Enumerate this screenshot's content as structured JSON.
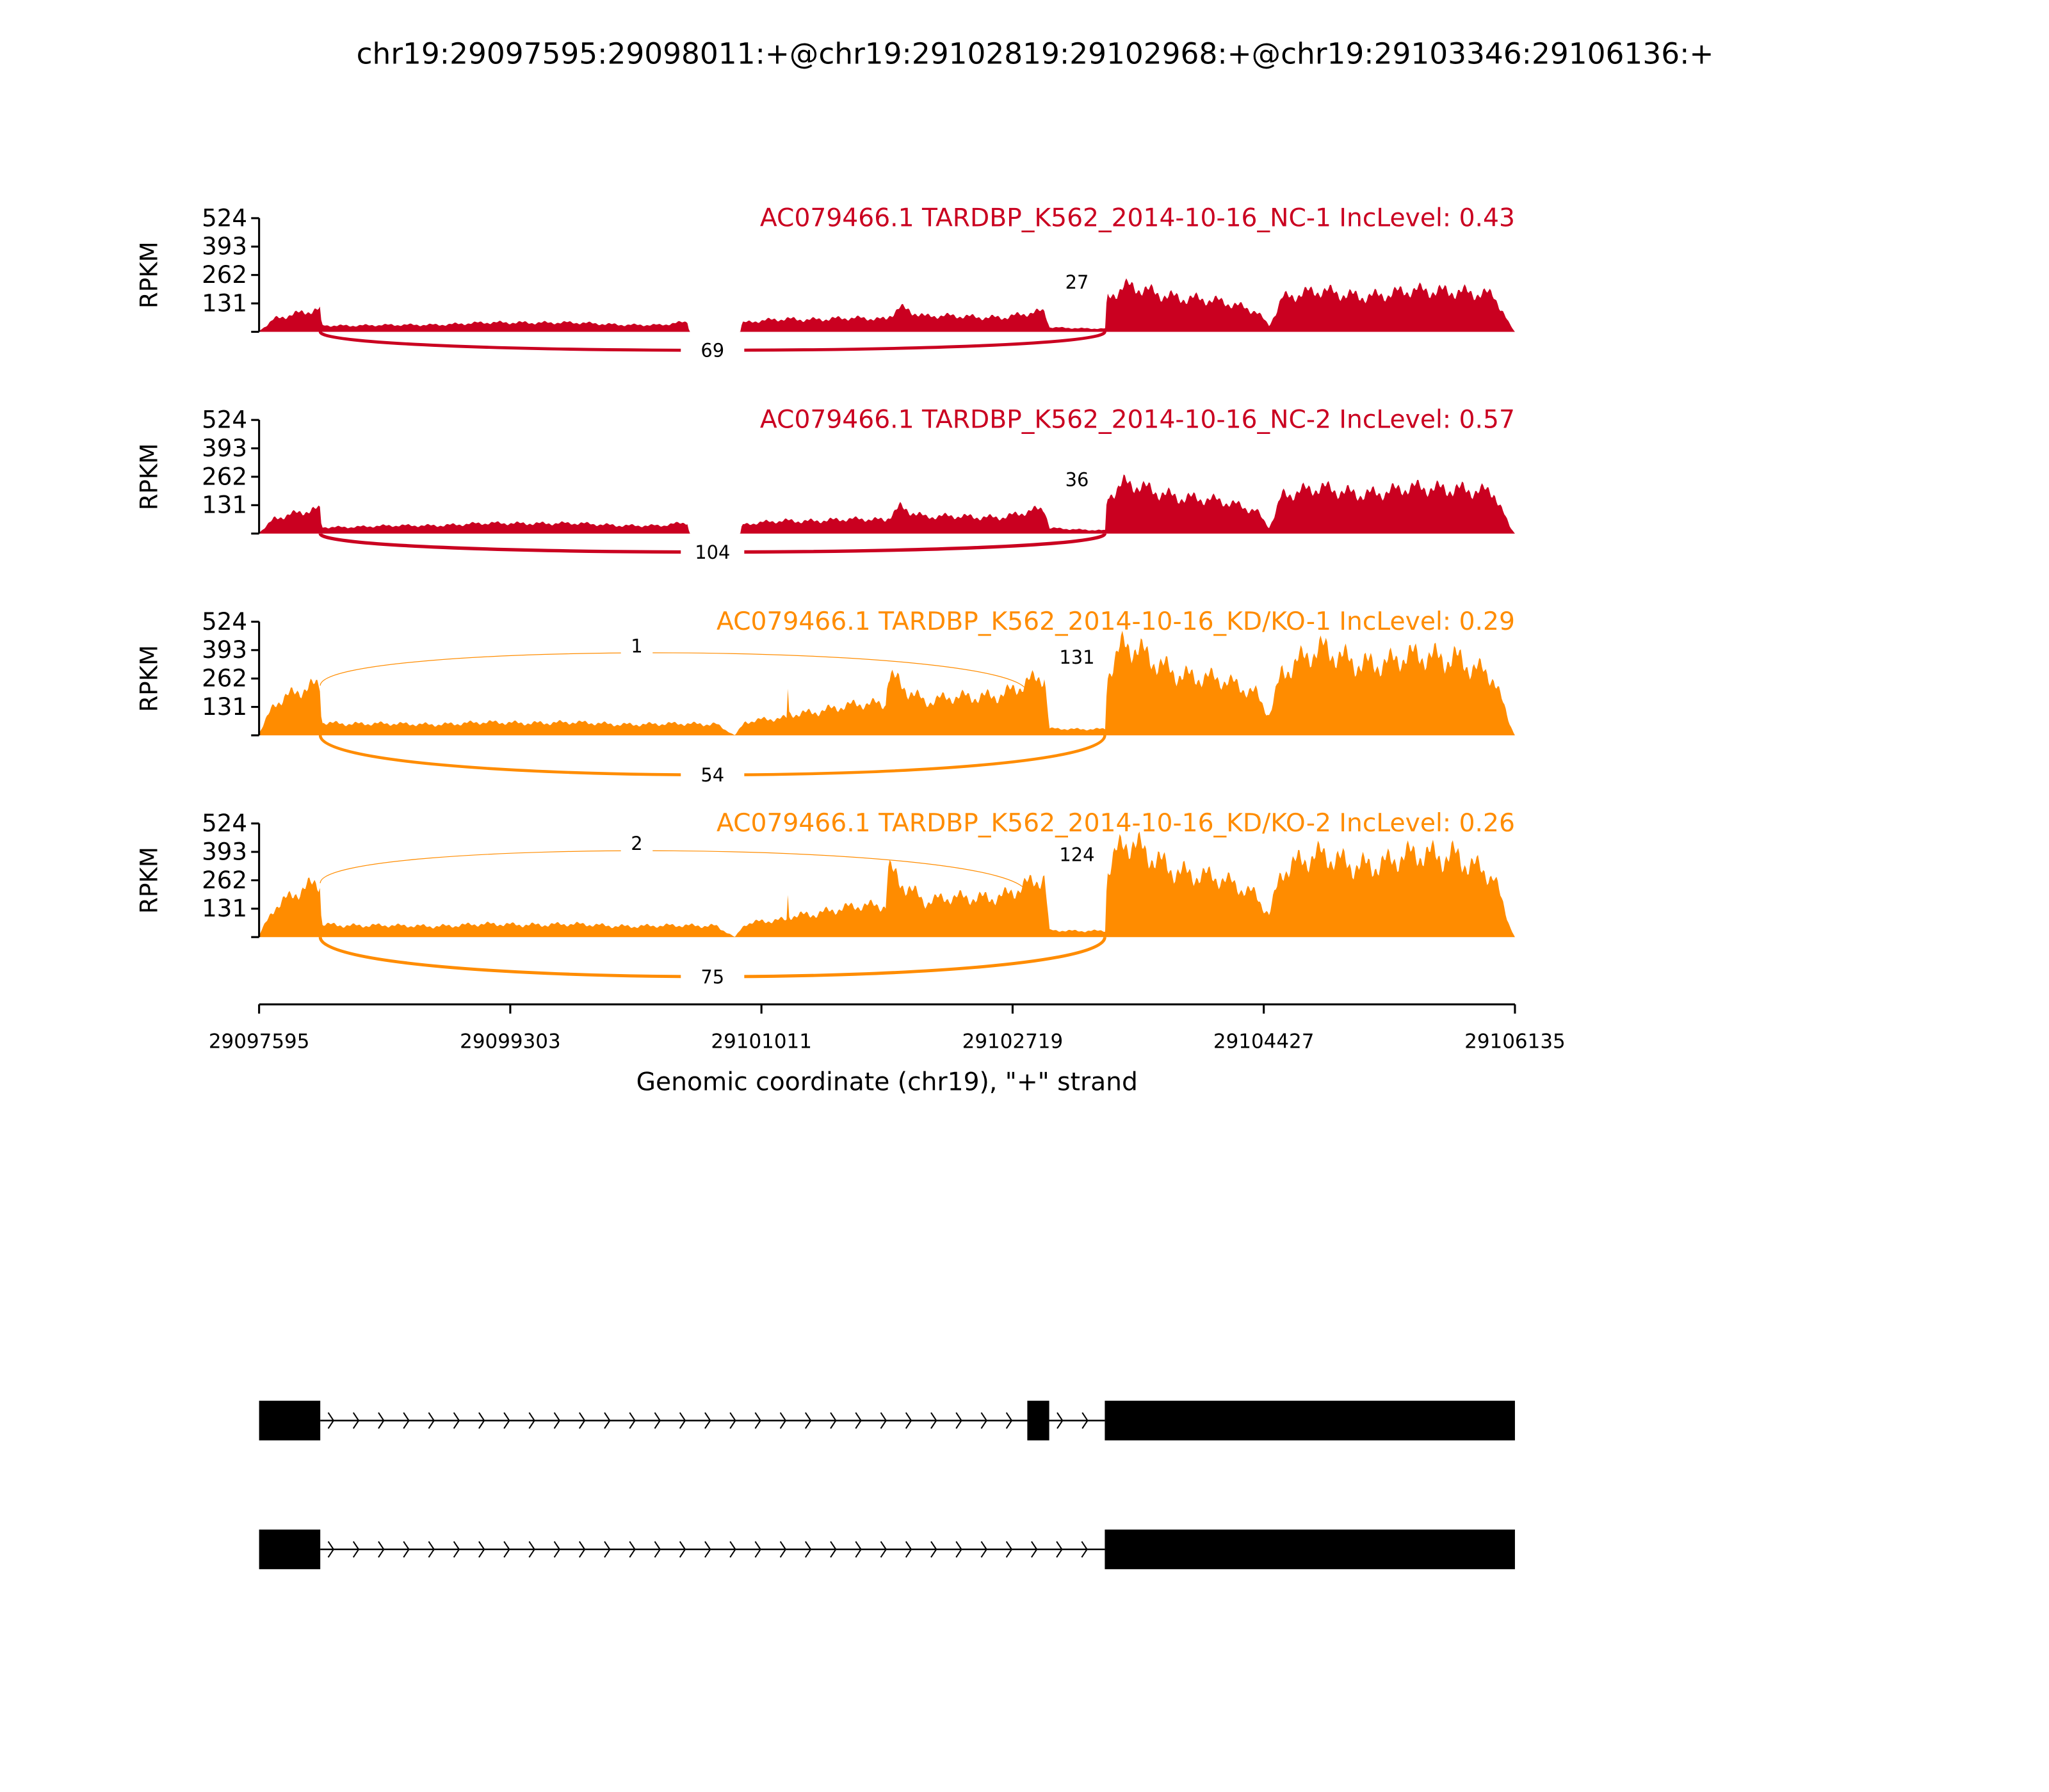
{
  "chart_data": {
    "type": "area",
    "title": "chr19:29097595:29098011:+@chr19:29102819:29102968:+@chr19:29103346:29106136:+",
    "xlabel": "Genomic coordinate (chr19), \"+\" strand",
    "ylabel": "RPKM",
    "xlim": [
      29097595,
      29106135
    ],
    "xticks": [
      "29097595",
      "29099303",
      "29101011",
      "29102719",
      "29104427",
      "29106135"
    ],
    "ylim": [
      0,
      524
    ],
    "yticks": [
      "131",
      "262",
      "393",
      "524"
    ],
    "grid": false,
    "tracks": [
      {
        "label": "AC079466.1 TARDBP_K562_2014-10-16_NC-1 IncLevel: 0.43",
        "color": "#ca0020",
        "coverage": [
          [
            29097595,
            5
          ],
          [
            29097700,
            60
          ],
          [
            29098009,
            100
          ],
          [
            29098020,
            30
          ],
          [
            29098530,
            30
          ],
          [
            29099430,
            45
          ],
          [
            29100330,
            30
          ],
          [
            29100510,
            45
          ],
          [
            29100520,
            0
          ],
          [
            29100867,
            0
          ],
          [
            29100880,
            40
          ],
          [
            29101182,
            60
          ],
          [
            29101856,
            60
          ],
          [
            29101950,
            120
          ],
          [
            29102126,
            70
          ],
          [
            29102666,
            70
          ],
          [
            29102936,
            90
          ],
          [
            29102970,
            20
          ],
          [
            29103350,
            15
          ],
          [
            29103360,
            150
          ],
          [
            29103475,
            200
          ],
          [
            29103924,
            160
          ],
          [
            29104374,
            100
          ],
          [
            29104464,
            30
          ],
          [
            29104550,
            160
          ],
          [
            29104824,
            180
          ],
          [
            29105274,
            170
          ],
          [
            29105723,
            200
          ],
          [
            29105993,
            160
          ],
          [
            29106100,
            30
          ],
          [
            29106135,
            0
          ]
        ],
        "junctions": [
          {
            "start": 29098011,
            "end": 29103346,
            "count": "69",
            "side": "below"
          },
          {
            "start": 29102968,
            "end": 29103346,
            "count": "27",
            "side": "above"
          }
        ]
      },
      {
        "label": "AC079466.1 TARDBP_K562_2014-10-16_NC-2 IncLevel: 0.57",
        "color": "#ca0020",
        "coverage": [
          [
            29097595,
            5
          ],
          [
            29097700,
            70
          ],
          [
            29098009,
            110
          ],
          [
            29098020,
            30
          ],
          [
            29098530,
            35
          ],
          [
            29099430,
            50
          ],
          [
            29100330,
            35
          ],
          [
            29100510,
            50
          ],
          [
            29100520,
            0
          ],
          [
            29100867,
            0
          ],
          [
            29100880,
            40
          ],
          [
            29101182,
            60
          ],
          [
            29101856,
            65
          ],
          [
            29101950,
            130
          ],
          [
            29102126,
            75
          ],
          [
            29102666,
            80
          ],
          [
            29102936,
            110
          ],
          [
            29102970,
            25
          ],
          [
            29103350,
            15
          ],
          [
            29103360,
            170
          ],
          [
            29103475,
            220
          ],
          [
            29103924,
            170
          ],
          [
            29104374,
            110
          ],
          [
            29104464,
            30
          ],
          [
            29104550,
            180
          ],
          [
            29104824,
            200
          ],
          [
            29105274,
            190
          ],
          [
            29105723,
            220
          ],
          [
            29105993,
            180
          ],
          [
            29106100,
            30
          ],
          [
            29106135,
            0
          ]
        ],
        "junctions": [
          {
            "start": 29098011,
            "end": 29103346,
            "count": "104",
            "side": "below"
          },
          {
            "start": 29102968,
            "end": 29103346,
            "count": "36",
            "side": "above"
          }
        ]
      },
      {
        "label": "AC079466.1 TARDBP_K562_2014-10-16_KD/KO-1 IncLevel: 0.29",
        "color": "#ff8c00",
        "coverage": [
          [
            29097595,
            10
          ],
          [
            29097700,
            150
          ],
          [
            29098009,
            230
          ],
          [
            29098020,
            60
          ],
          [
            29098530,
            50
          ],
          [
            29099430,
            60
          ],
          [
            29100330,
            50
          ],
          [
            29100700,
            55
          ],
          [
            29100830,
            0
          ],
          [
            29100900,
            60
          ],
          [
            29101182,
            80
          ],
          [
            29101190,
            220
          ],
          [
            29101200,
            100
          ],
          [
            29101856,
            150
          ],
          [
            29101870,
            300
          ],
          [
            29102126,
            150
          ],
          [
            29102666,
            200
          ],
          [
            29102936,
            260
          ],
          [
            29102970,
            30
          ],
          [
            29103350,
            30
          ],
          [
            29103360,
            280
          ],
          [
            29103475,
            400
          ],
          [
            29103924,
            280
          ],
          [
            29104374,
            200
          ],
          [
            29104464,
            100
          ],
          [
            29104550,
            300
          ],
          [
            29104824,
            380
          ],
          [
            29105274,
            330
          ],
          [
            29105723,
            380
          ],
          [
            29105993,
            250
          ],
          [
            29106100,
            50
          ],
          [
            29106135,
            0
          ]
        ],
        "junctions": [
          {
            "start": 29098011,
            "end": 29103346,
            "count": "54",
            "side": "below"
          },
          {
            "start": 29098011,
            "end": 29102819,
            "count": "1",
            "side": "above"
          },
          {
            "start": 29102968,
            "end": 29103346,
            "count": "131",
            "side": "above"
          }
        ]
      },
      {
        "label": "AC079466.1 TARDBP_K562_2014-10-16_KD/KO-2 IncLevel: 0.26",
        "color": "#ff8c00",
        "coverage": [
          [
            29097595,
            10
          ],
          [
            29097700,
            140
          ],
          [
            29098009,
            250
          ],
          [
            29098020,
            60
          ],
          [
            29098530,
            50
          ],
          [
            29099430,
            60
          ],
          [
            29100330,
            50
          ],
          [
            29100700,
            55
          ],
          [
            29100830,
            0
          ],
          [
            29100900,
            60
          ],
          [
            29101182,
            80
          ],
          [
            29101190,
            200
          ],
          [
            29101200,
            100
          ],
          [
            29101856,
            150
          ],
          [
            29101870,
            330
          ],
          [
            29102126,
            160
          ],
          [
            29102666,
            200
          ],
          [
            29102936,
            260
          ],
          [
            29102970,
            30
          ],
          [
            29103350,
            30
          ],
          [
            29103360,
            300
          ],
          [
            29103475,
            420
          ],
          [
            29103924,
            300
          ],
          [
            29104374,
            200
          ],
          [
            29104464,
            110
          ],
          [
            29104550,
            320
          ],
          [
            29104824,
            360
          ],
          [
            29105274,
            340
          ],
          [
            29105723,
            400
          ],
          [
            29105993,
            260
          ],
          [
            29106100,
            50
          ],
          [
            29106135,
            0
          ]
        ],
        "junctions": [
          {
            "start": 29098011,
            "end": 29103346,
            "count": "75",
            "side": "below"
          },
          {
            "start": 29098011,
            "end": 29102819,
            "count": "2",
            "side": "above"
          },
          {
            "start": 29102968,
            "end": 29103346,
            "count": "124",
            "side": "above"
          }
        ]
      }
    ],
    "gene_models": [
      {
        "exons": [
          [
            29097595,
            29098011
          ],
          [
            29102819,
            29102968
          ],
          [
            29103346,
            29106136
          ]
        ]
      },
      {
        "exons": [
          [
            29097595,
            29098011
          ],
          [
            29103346,
            29106136
          ]
        ]
      }
    ]
  }
}
